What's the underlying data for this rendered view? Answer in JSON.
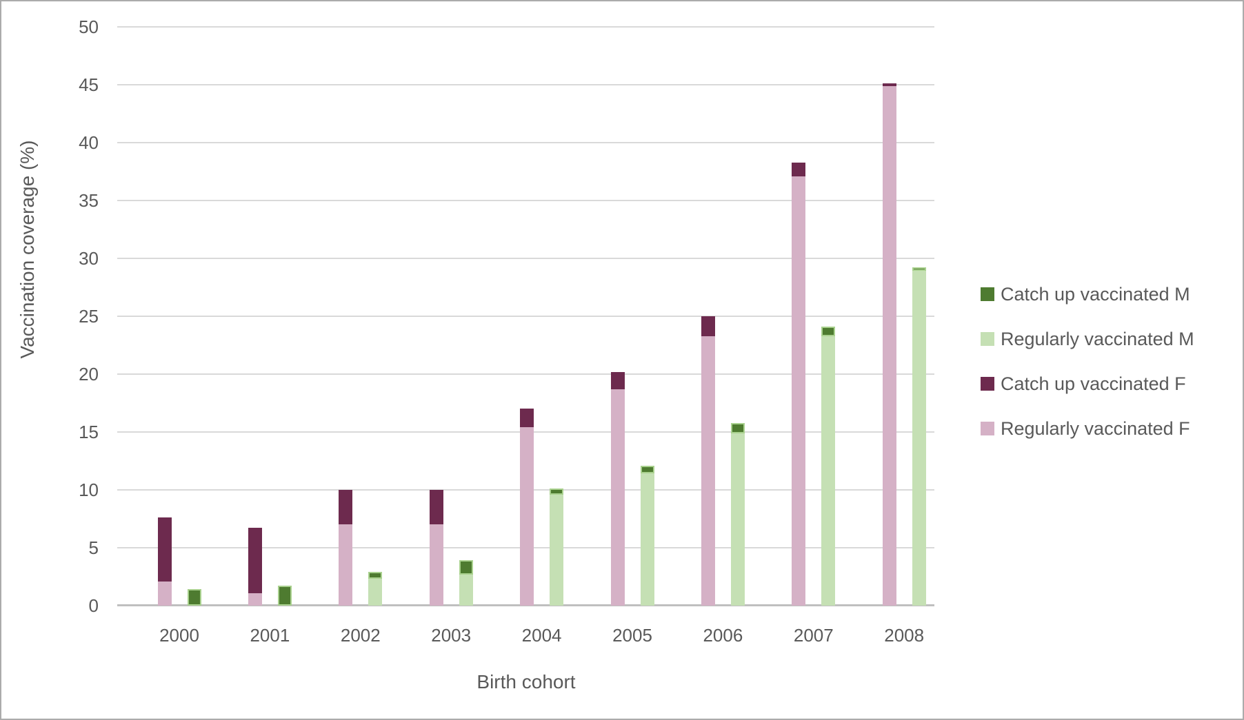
{
  "figure": {
    "text_color": "#595959",
    "gridline_color": "#d9d9d9",
    "axis_line_color": "#bfbfbf",
    "background_color": "#ffffff",
    "frame_color": "#ababab"
  },
  "chart_data": {
    "type": "bar",
    "subtype": "grouped-stacked-columns",
    "title": "",
    "xlabel": "Birth cohort",
    "ylabel": "Vaccination coverage (%)",
    "ylim": [
      0,
      50
    ],
    "ytick_step": 5,
    "grid": "horizontal",
    "legend_position": "right",
    "categories": [
      "2000",
      "2001",
      "2002",
      "2003",
      "2004",
      "2005",
      "2006",
      "2007",
      "2008"
    ],
    "series": [
      {
        "name": "Regularly vaccinated F",
        "stack": "F",
        "color": "#d5b1c6",
        "values": [
          2.1,
          1.1,
          7.0,
          7.0,
          15.4,
          18.7,
          23.3,
          37.1,
          44.9
        ]
      },
      {
        "name": "Catch up vaccinated F",
        "stack": "F",
        "color": "#6d2a4e",
        "values": [
          5.5,
          5.6,
          3.0,
          3.0,
          1.6,
          1.5,
          1.7,
          1.2,
          0.2
        ]
      },
      {
        "name": "Regularly vaccinated M",
        "stack": "M",
        "color": "#c5e0b4",
        "values": [
          0,
          0,
          2.3,
          2.7,
          9.6,
          11.4,
          14.9,
          23.3,
          28.9
        ]
      },
      {
        "name": "Catch up vaccinated M",
        "stack": "M",
        "color": "#4e7b30",
        "border": "#a9d18e",
        "values": [
          1.4,
          1.7,
          0.6,
          1.2,
          0.5,
          0.7,
          0.9,
          0.8,
          0.3
        ]
      }
    ],
    "stack_totals": {
      "F": [
        7.6,
        6.7,
        10.0,
        10.0,
        17.0,
        20.2,
        25.0,
        38.3,
        45.1
      ],
      "M": [
        1.4,
        1.7,
        2.9,
        3.9,
        10.1,
        12.1,
        15.8,
        24.1,
        29.2
      ]
    },
    "legend": [
      "Catch up vaccinated M",
      "Regularly vaccinated M",
      "Catch up vaccinated F",
      "Regularly vaccinated F"
    ]
  }
}
